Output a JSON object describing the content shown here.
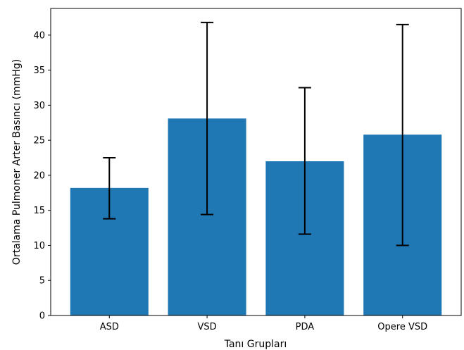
{
  "chart_data": {
    "type": "bar",
    "categories": [
      "ASD",
      "VSD",
      "PDA",
      "Opere VSD"
    ],
    "values": [
      18.2,
      28.1,
      22.0,
      25.8
    ],
    "error_low": [
      13.8,
      14.4,
      11.6,
      10.0
    ],
    "error_high": [
      22.5,
      41.8,
      32.5,
      41.5
    ],
    "title": "",
    "xlabel": "Tanı Grupları",
    "ylabel": "Ortalama Pulmoner Arter Basıncı (mmHg)",
    "ylim": [
      0,
      43.8
    ],
    "yticks": [
      "0",
      "5",
      "10",
      "15",
      "20",
      "25",
      "30",
      "35",
      "40"
    ],
    "grid": false,
    "bar_color": "#1f77b4",
    "error_color": "#000000"
  }
}
